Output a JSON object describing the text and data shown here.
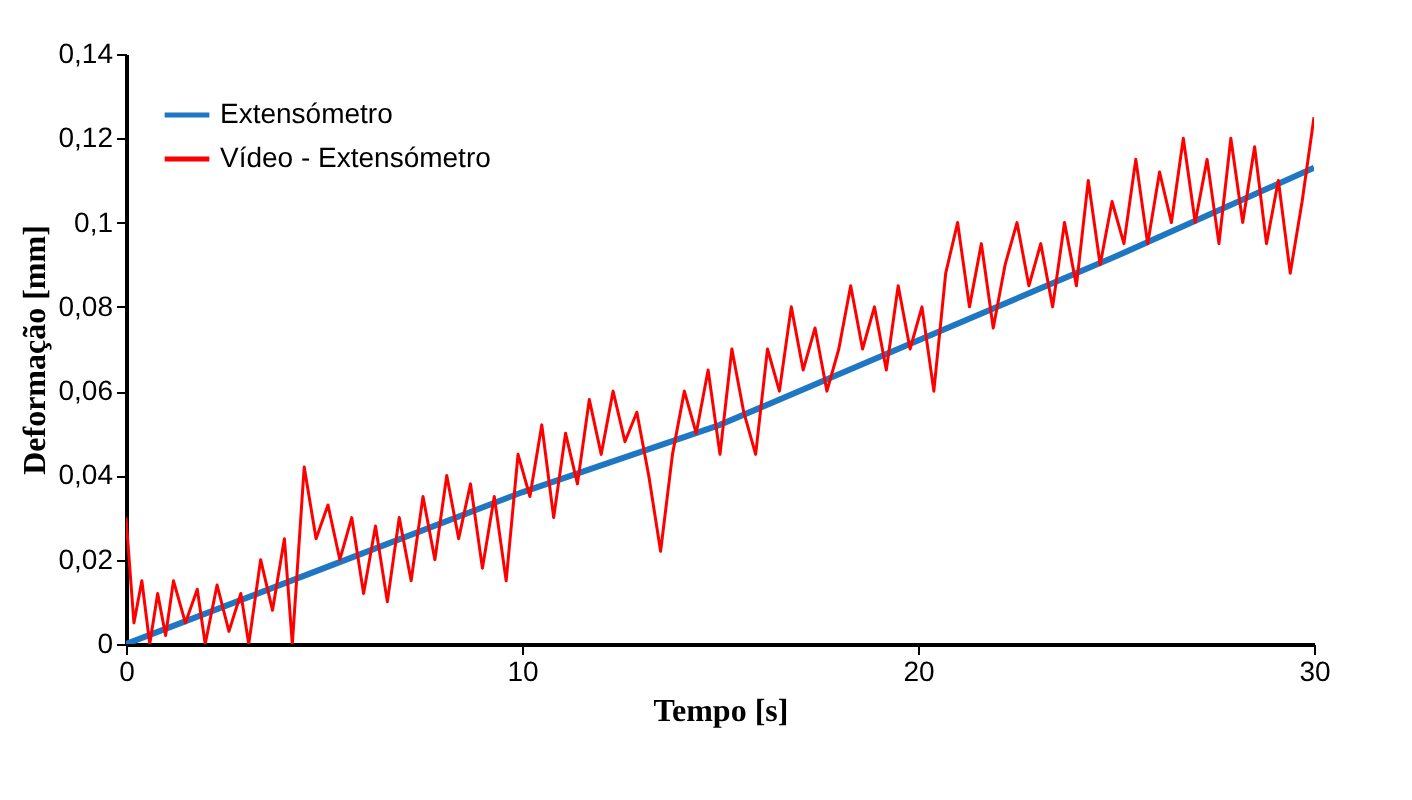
{
  "chart_data": {
    "type": "line",
    "xlabel": "Tempo [s]",
    "ylabel": "Deformação [mm]",
    "xlim": [
      0,
      30
    ],
    "xticks": [
      0,
      10,
      20,
      30
    ],
    "ylim": [
      0,
      0.14
    ],
    "yticks": [
      0,
      {
        "value": 0.02,
        "label": "0,02"
      },
      {
        "value": 0.04,
        "label": "0,04"
      },
      {
        "value": 0.06,
        "label": "0,06"
      },
      {
        "value": 0.08,
        "label": "0,08"
      },
      {
        "value": 0.1,
        "label": "0,1"
      },
      {
        "value": 0.12,
        "label": "0,12"
      },
      {
        "value": 0.14,
        "label": "0,14"
      }
    ],
    "grid": false,
    "legend": "top left",
    "marker": "none",
    "line_style": "solid",
    "series": [
      {
        "name": "Extensómetro",
        "color": "#1f77c4",
        "x": [
          0,
          5,
          10,
          15,
          20,
          25,
          30
        ],
        "values": [
          0,
          0.018,
          0.036,
          0.052,
          0.072,
          0.092,
          0.113
        ]
      },
      {
        "name": "Vídeo - Extensómetro",
        "color": "#ff0000",
        "x": [
          0,
          0.2,
          0.4,
          0.6,
          0.8,
          1.0,
          1.2,
          1.5,
          1.8,
          2.0,
          2.3,
          2.6,
          2.9,
          3.1,
          3.4,
          3.7,
          4.0,
          4.2,
          4.5,
          4.8,
          5.1,
          5.4,
          5.7,
          6.0,
          6.3,
          6.6,
          6.9,
          7.2,
          7.5,
          7.8,
          8.1,
          8.4,
          8.7,
          9.0,
          9.3,
          9.6,
          9.9,
          10.2,
          10.5,
          10.8,
          11.1,
          11.4,
          11.7,
          12.0,
          12.3,
          12.6,
          12.9,
          13.2,
          13.5,
          13.8,
          14.1,
          14.4,
          14.7,
          15.0,
          15.3,
          15.6,
          15.9,
          16.2,
          16.5,
          16.8,
          17.1,
          17.4,
          17.7,
          18.0,
          18.3,
          18.6,
          18.9,
          19.2,
          19.5,
          19.8,
          20.1,
          20.4,
          20.7,
          21.0,
          21.3,
          21.6,
          21.9,
          22.2,
          22.5,
          22.8,
          23.1,
          23.4,
          23.7,
          24.0,
          24.3,
          24.6,
          24.9,
          25.2,
          25.5,
          25.8,
          26.1,
          26.4,
          26.7,
          27.0,
          27.3,
          27.6,
          27.9,
          28.2,
          28.5,
          28.8,
          29.1,
          29.4,
          29.7,
          30
        ],
        "values": [
          0.03,
          0.005,
          0.015,
          0,
          0.012,
          0.002,
          0.015,
          0.005,
          0.013,
          0,
          0.014,
          0.003,
          0.012,
          0,
          0.02,
          0.008,
          0.025,
          0,
          0.042,
          0.025,
          0.033,
          0.02,
          0.03,
          0.012,
          0.028,
          0.01,
          0.03,
          0.015,
          0.035,
          0.02,
          0.04,
          0.025,
          0.038,
          0.018,
          0.035,
          0.015,
          0.045,
          0.035,
          0.052,
          0.03,
          0.05,
          0.038,
          0.058,
          0.045,
          0.06,
          0.048,
          0.055,
          0.04,
          0.022,
          0.045,
          0.06,
          0.05,
          0.065,
          0.045,
          0.07,
          0.055,
          0.045,
          0.07,
          0.06,
          0.08,
          0.065,
          0.075,
          0.06,
          0.07,
          0.085,
          0.07,
          0.08,
          0.065,
          0.085,
          0.07,
          0.08,
          0.06,
          0.088,
          0.1,
          0.08,
          0.095,
          0.075,
          0.09,
          0.1,
          0.085,
          0.095,
          0.08,
          0.1,
          0.085,
          0.11,
          0.09,
          0.105,
          0.095,
          0.115,
          0.095,
          0.112,
          0.1,
          0.12,
          0.1,
          0.115,
          0.095,
          0.12,
          0.1,
          0.118,
          0.095,
          0.11,
          0.088,
          0.105,
          0.125
        ]
      }
    ]
  }
}
